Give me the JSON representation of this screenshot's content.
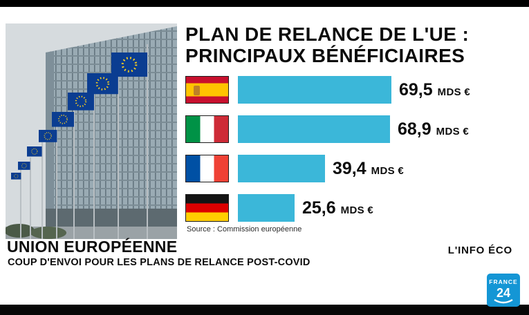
{
  "chart": {
    "title_line1": "PLAN DE RELANCE DE L'UE :",
    "title_line2": "PRINCIPAUX BÉNÉFICIAIRES"
  },
  "chart_data": {
    "type": "bar",
    "orientation": "horizontal",
    "title": "PLAN DE RELANCE DE L'UE : PRINCIPAUX BÉNÉFICIAIRES",
    "categories": [
      "Espagne",
      "Italie",
      "France",
      "Allemagne"
    ],
    "values": [
      69.5,
      68.9,
      39.4,
      25.6
    ],
    "value_labels": [
      "69,5",
      "68,9",
      "39,4",
      "25,6"
    ],
    "unit": "MDS €",
    "xlim": [
      0,
      72
    ],
    "bar_color": "#3bb7d9",
    "source": "Source : Commission européenne",
    "legend": "none",
    "grid": "off"
  },
  "banner": {
    "title": "UNION EUROPÉENNE",
    "subtitle": "COUP D'ENVOI POUR LES PLANS DE RELANCE POST-COVID",
    "program": "L'INFO ÉCO"
  },
  "logo": {
    "line1": "FRANCE",
    "line2": "24",
    "blue": "#1496d5"
  }
}
